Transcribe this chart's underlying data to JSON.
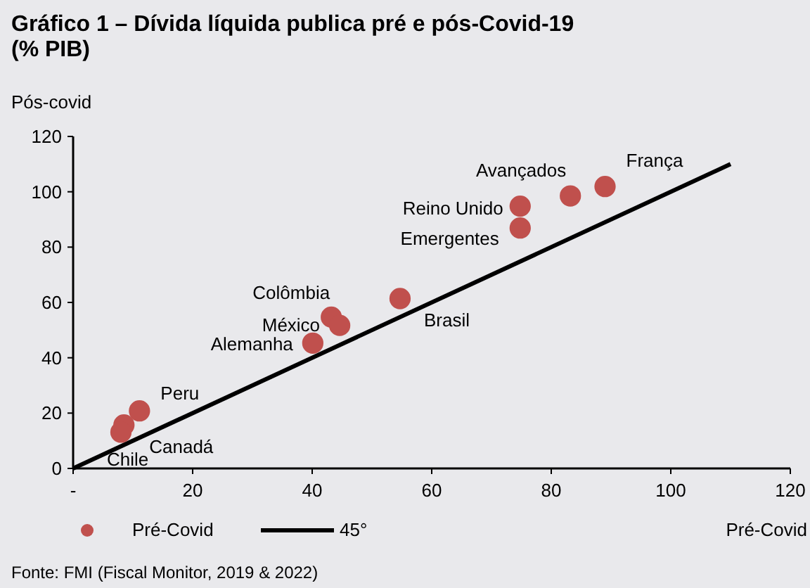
{
  "chart_data": {
    "type": "scatter",
    "title": "Gráfico 1 – Dívida líquida publica pré e pós-Covid-19 (% PIB)",
    "xlabel": "Pré-Covid",
    "ylabel": "Pós-covid",
    "xlim": [
      0,
      120
    ],
    "ylim": [
      0,
      120
    ],
    "xticks": [
      {
        "value": 0,
        "label": "-"
      },
      20,
      40,
      60,
      80,
      100,
      120
    ],
    "yticks": [
      0,
      20,
      40,
      60,
      80,
      100,
      120
    ],
    "grid": false,
    "legend": "bottom",
    "marker": "circle",
    "series": [
      {
        "name": "Pré-Covid",
        "type": "scatter",
        "color": "#c0504d",
        "x": [
          89,
          83.2,
          74.8,
          74.8,
          54.7,
          43.2,
          44.6,
          40.1,
          11.1,
          8.5,
          8
        ],
        "values": [
          101.9,
          98.5,
          94.8,
          86.9,
          61.4,
          54.7,
          51.7,
          45.3,
          20.8,
          15.7,
          13.1
        ]
      },
      {
        "name": "45°",
        "type": "line",
        "color": "#000000",
        "line_style": "solid",
        "marker": "none",
        "x": [
          0,
          110
        ],
        "values": [
          0,
          110
        ]
      }
    ],
    "annotations": [
      {
        "text": "França",
        "x": 89,
        "y": 101.9
      },
      {
        "text": "Avançados",
        "x": 83.2,
        "y": 98.5
      },
      {
        "text": "Reino Unido",
        "x": 74.8,
        "y": 94.8
      },
      {
        "text": "Emergentes",
        "x": 74.8,
        "y": 86.9
      },
      {
        "text": "Brasil",
        "x": 54.7,
        "y": 61.4
      },
      {
        "text": "Colômbia",
        "x": 43.2,
        "y": 54.7
      },
      {
        "text": "México",
        "x": 44.6,
        "y": 51.7
      },
      {
        "text": "Alemanha",
        "x": 40.1,
        "y": 45.3
      },
      {
        "text": "Peru",
        "x": 11.1,
        "y": 20.8
      },
      {
        "text": "Canadá",
        "x": 8.5,
        "y": 15.7
      },
      {
        "text": "Chile",
        "x": 8,
        "y": 13.1
      },
      "Fonte: FMI (Fiscal Monitor, 2019 & 2022)"
    ]
  }
}
